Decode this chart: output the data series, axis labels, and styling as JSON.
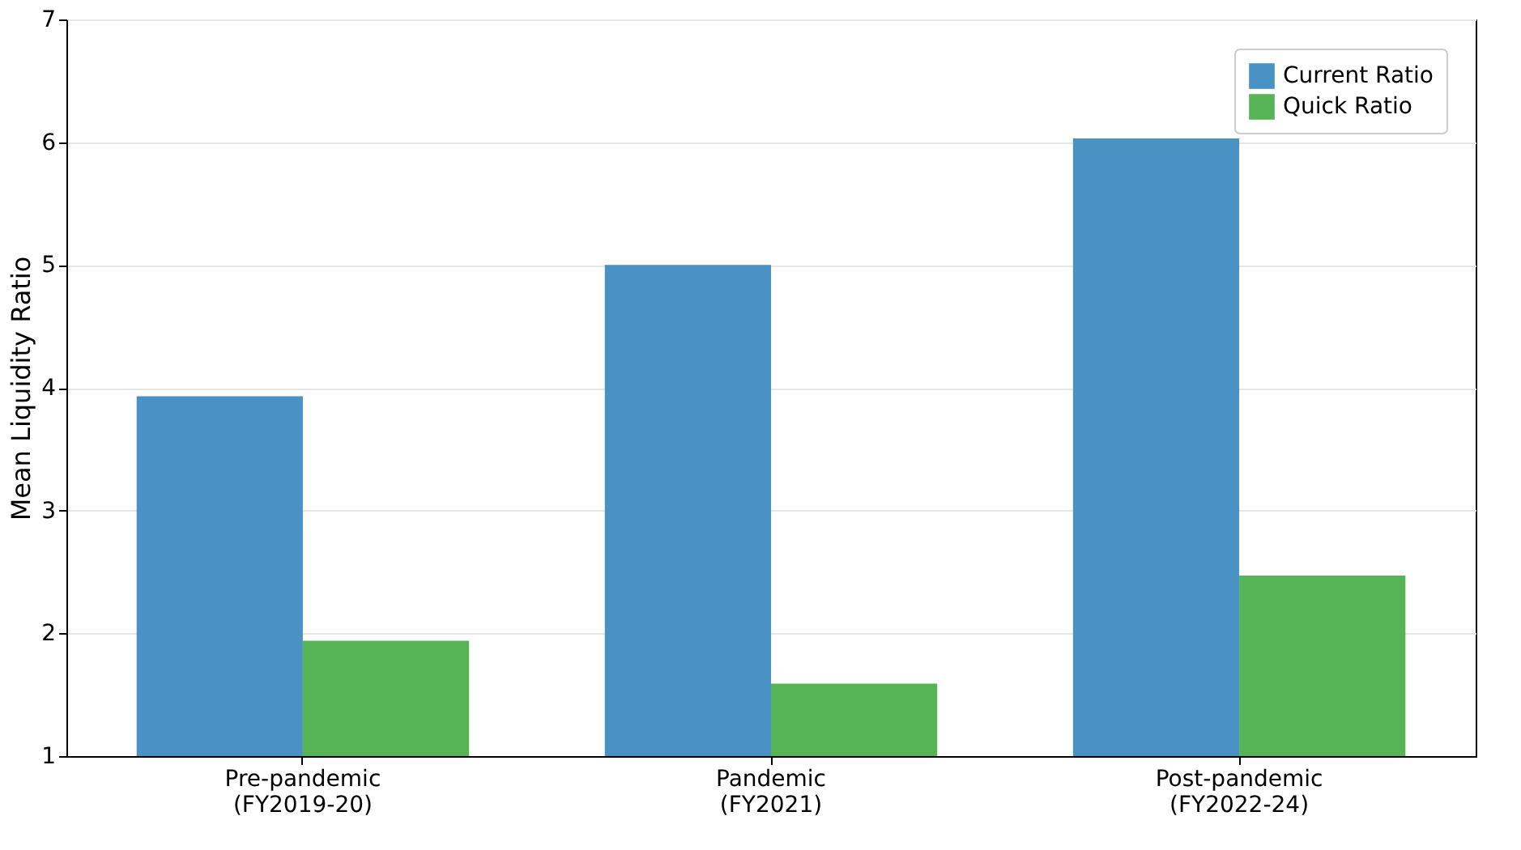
{
  "chart_data": {
    "type": "bar",
    "ylabel": "Mean Liquidity Ratio",
    "categories": [
      "Pre-pandemic\n(FY2019-20)",
      "Pandemic\n(FY2021)",
      "Post-pandemic\n(FY2022-24)"
    ],
    "series": [
      {
        "name": "Current Ratio",
        "color": "#4a92c4",
        "values": [
          3.93,
          5.0,
          6.03
        ]
      },
      {
        "name": "Quick Ratio",
        "color": "#56b456",
        "values": [
          1.94,
          1.59,
          2.47
        ]
      }
    ],
    "ylim": [
      1,
      7
    ],
    "yticks": [
      1,
      2,
      3,
      4,
      5,
      6,
      7
    ],
    "grid": "y",
    "legend": "top right"
  }
}
